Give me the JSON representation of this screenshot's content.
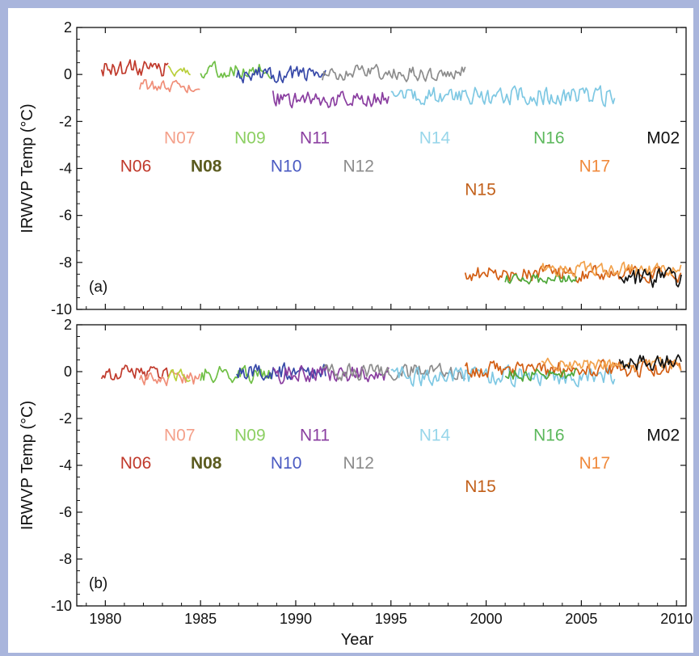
{
  "chart_data": [
    {
      "type": "line",
      "panel_label": "(a)",
      "ylabel": "IRWVP Temp (°C)",
      "xlabel": "Year",
      "xlim": [
        1978.5,
        2010.5
      ],
      "ylim": [
        -10,
        2
      ],
      "x_ticks": [
        "1980",
        "1985",
        "1990",
        "1995",
        "2000",
        "2005",
        "2010"
      ],
      "y_ticks": [
        "2",
        "0",
        "-2",
        "-4",
        "-6",
        "-8",
        "-10"
      ],
      "satellite_labels": [
        {
          "name": "N06",
          "x": 1981.6,
          "y": -3.9
        },
        {
          "name": "N07",
          "x": 1983.9,
          "y": -2.7
        },
        {
          "name": "N08",
          "x": 1985.3,
          "y": -3.9
        },
        {
          "name": "N09",
          "x": 1987.6,
          "y": -2.7
        },
        {
          "name": "N10",
          "x": 1989.5,
          "y": -3.9
        },
        {
          "name": "N11",
          "x": 1991.0,
          "y": -2.7
        },
        {
          "name": "N12",
          "x": 1993.3,
          "y": -3.9
        },
        {
          "name": "N14",
          "x": 1997.3,
          "y": -2.7
        },
        {
          "name": "N15",
          "x": 1999.7,
          "y": -4.9
        },
        {
          "name": "N16",
          "x": 2003.3,
          "y": -2.7
        },
        {
          "name": "N17",
          "x": 2005.7,
          "y": -3.9
        },
        {
          "name": "M02",
          "x": 2009.3,
          "y": -2.7
        }
      ],
      "series": [
        {
          "name": "N06",
          "color": "#c0392b",
          "x_start": 1979.8,
          "x_end": 1983.3,
          "level": 0.3,
          "amp": 0.35
        },
        {
          "name": "N07",
          "color": "#f08e78",
          "x_start": 1981.8,
          "x_end": 1985.0,
          "level": -0.5,
          "amp": 0.25
        },
        {
          "name": "N08",
          "color": "#b9cf3a",
          "x_start": 1983.3,
          "x_end": 1984.5,
          "level": 0.2,
          "amp": 0.25
        },
        {
          "name": "N09",
          "color": "#6fbf45",
          "x_start": 1985.0,
          "x_end": 1988.8,
          "level": 0.2,
          "amp": 0.3
        },
        {
          "name": "N10",
          "color": "#3648a8",
          "x_start": 1986.9,
          "x_end": 1991.6,
          "level": 0.0,
          "amp": 0.3
        },
        {
          "name": "N11",
          "color": "#8a3ea0",
          "x_start": 1988.8,
          "x_end": 1994.9,
          "level": -1.0,
          "amp": 0.35
        },
        {
          "name": "N12",
          "color": "#8c8c8c",
          "x_start": 1991.4,
          "x_end": 1998.9,
          "level": 0.05,
          "amp": 0.3
        },
        {
          "name": "N14",
          "color": "#7ec8e3",
          "x_start": 1995.0,
          "x_end": 2006.8,
          "level": -0.9,
          "amp": 0.35
        },
        {
          "name": "N15",
          "color": "#d35f14",
          "x_start": 1998.9,
          "x_end": 2010.3,
          "level": -8.5,
          "amp": 0.3
        },
        {
          "name": "N16",
          "color": "#4fa83a",
          "x_start": 2001.0,
          "x_end": 2004.8,
          "level": -8.7,
          "amp": 0.2
        },
        {
          "name": "N17",
          "color": "#f2a24c",
          "x_start": 2002.9,
          "x_end": 2010.3,
          "level": -8.3,
          "amp": 0.25
        },
        {
          "name": "M02",
          "color": "#111111",
          "x_start": 2007.0,
          "x_end": 2010.3,
          "level": -8.7,
          "amp": 0.35
        }
      ]
    },
    {
      "type": "line",
      "panel_label": "(b)",
      "ylabel": "IRWVP Temp (°C)",
      "xlabel": "Year",
      "xlim": [
        1978.5,
        2010.5
      ],
      "ylim": [
        -10,
        2
      ],
      "x_ticks": [
        "1980",
        "1985",
        "1990",
        "1995",
        "2000",
        "2005",
        "2010"
      ],
      "y_ticks": [
        "2",
        "0",
        "-2",
        "-4",
        "-6",
        "-8",
        "-10"
      ],
      "satellite_labels": [
        {
          "name": "N06",
          "x": 1981.6,
          "y": -3.9
        },
        {
          "name": "N07",
          "x": 1983.9,
          "y": -2.7
        },
        {
          "name": "N08",
          "x": 1985.3,
          "y": -3.9
        },
        {
          "name": "N09",
          "x": 1987.6,
          "y": -2.7
        },
        {
          "name": "N10",
          "x": 1989.5,
          "y": -3.9
        },
        {
          "name": "N11",
          "x": 1991.0,
          "y": -2.7
        },
        {
          "name": "N12",
          "x": 1993.3,
          "y": -3.9
        },
        {
          "name": "N14",
          "x": 1997.3,
          "y": -2.7
        },
        {
          "name": "N15",
          "x": 1999.7,
          "y": -4.9
        },
        {
          "name": "N16",
          "x": 2003.3,
          "y": -2.7
        },
        {
          "name": "N17",
          "x": 2005.7,
          "y": -3.9
        },
        {
          "name": "M02",
          "x": 2009.3,
          "y": -2.7
        }
      ],
      "series": [
        {
          "name": "N06",
          "color": "#c0392b",
          "x_start": 1979.8,
          "x_end": 1983.3,
          "level": -0.1,
          "amp": 0.3
        },
        {
          "name": "N07",
          "color": "#f08e78",
          "x_start": 1981.8,
          "x_end": 1985.0,
          "level": -0.3,
          "amp": 0.25
        },
        {
          "name": "N08",
          "color": "#b9cf3a",
          "x_start": 1983.3,
          "x_end": 1984.5,
          "level": -0.1,
          "amp": 0.25
        },
        {
          "name": "N09",
          "color": "#6fbf45",
          "x_start": 1985.0,
          "x_end": 1988.8,
          "level": -0.1,
          "amp": 0.3
        },
        {
          "name": "N10",
          "color": "#3648a8",
          "x_start": 1986.9,
          "x_end": 1991.6,
          "level": 0.0,
          "amp": 0.3
        },
        {
          "name": "N11",
          "color": "#8a3ea0",
          "x_start": 1988.8,
          "x_end": 1994.9,
          "level": -0.1,
          "amp": 0.35
        },
        {
          "name": "N12",
          "color": "#8c8c8c",
          "x_start": 1991.4,
          "x_end": 1998.9,
          "level": 0.0,
          "amp": 0.3
        },
        {
          "name": "N14",
          "color": "#7ec8e3",
          "x_start": 1995.0,
          "x_end": 2006.8,
          "level": -0.2,
          "amp": 0.35
        },
        {
          "name": "N15",
          "color": "#d35f14",
          "x_start": 1998.9,
          "x_end": 2010.3,
          "level": 0.1,
          "amp": 0.3
        },
        {
          "name": "N16",
          "color": "#4fa83a",
          "x_start": 2001.0,
          "x_end": 2004.8,
          "level": -0.1,
          "amp": 0.25
        },
        {
          "name": "N17",
          "color": "#f2a24c",
          "x_start": 2002.9,
          "x_end": 2010.3,
          "level": 0.3,
          "amp": 0.25
        },
        {
          "name": "M02",
          "color": "#111111",
          "x_start": 2007.0,
          "x_end": 2010.3,
          "level": 0.4,
          "amp": 0.3
        }
      ]
    }
  ]
}
